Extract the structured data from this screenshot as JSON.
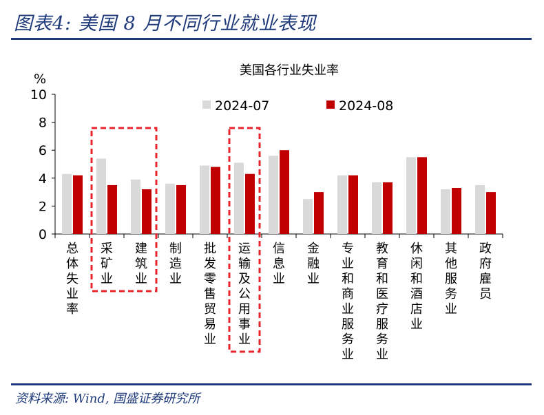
{
  "figure_title": "图表4:  美国 8 月不同行业就业表现",
  "source_note": "资料来源: Wind, 国盛证券研究所",
  "chart_data": {
    "type": "bar",
    "title": "美国各行业失业率",
    "ylabel": "%",
    "xlabel": "",
    "ylim": [
      0,
      10
    ],
    "yticks": [
      0,
      2,
      4,
      6,
      8,
      10
    ],
    "grid": false,
    "legend_position": "top-center",
    "categories": [
      "总体失业率",
      "采矿业",
      "建筑业",
      "制造业",
      "批发零售贸易业",
      "运输及公用事业",
      "信息业",
      "金融业",
      "专业和商业服务业",
      "教育和医疗服务业",
      "休闲和酒店业",
      "其他服务业",
      "政府雇员"
    ],
    "series": [
      {
        "name": "2024-07",
        "color": "#d9d9d9",
        "values": [
          4.3,
          5.4,
          3.9,
          3.6,
          4.9,
          5.1,
          5.6,
          2.5,
          4.2,
          3.7,
          5.5,
          3.2,
          3.5
        ]
      },
      {
        "name": "2024-08",
        "color": "#c00000",
        "values": [
          4.2,
          3.5,
          3.2,
          3.5,
          4.8,
          4.3,
          6.0,
          3.0,
          4.2,
          3.7,
          5.5,
          3.3,
          3.0
        ]
      }
    ],
    "highlight_boxes": [
      {
        "categories": [
          "采矿业",
          "建筑业"
        ],
        "style": "dashed",
        "color": "#e8232a"
      },
      {
        "categories": [
          "运输及公用事业"
        ],
        "style": "dashed",
        "color": "#e8232a"
      }
    ]
  }
}
